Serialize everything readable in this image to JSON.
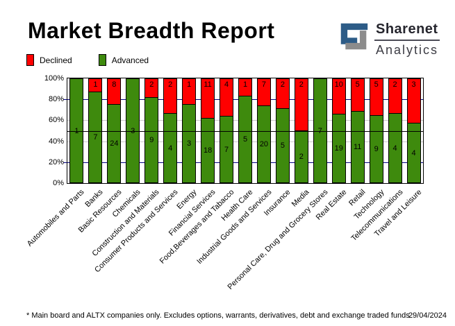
{
  "header": {
    "title": "Market Breadth Report",
    "brand_name": "Sharenet",
    "brand_sub": "Analytics"
  },
  "legend": [
    {
      "label": "Declined",
      "color": "#ff0000"
    },
    {
      "label": "Advanced",
      "color": "#3e8a0d"
    }
  ],
  "chart_data": {
    "type": "bar",
    "stacked": true,
    "unit": "percent_of_total",
    "title": "Market Breadth Report",
    "categories": [
      "Automobiles and Parts",
      "Banks",
      "Basic Resources",
      "Chemicals",
      "Construction and Materials",
      "Consumer Products and Services",
      "Energy",
      "Financial Services",
      "Food,Beverages and Tabacco",
      "Health Care",
      "Industrial Goods and Services",
      "Insurance",
      "Media",
      "Personal Care, Drug and Grocery Stores",
      "Real Estate",
      "Retail",
      "Technology",
      "Telecommunications",
      "Travel and Leisure"
    ],
    "series": [
      {
        "name": "Declined",
        "color": "#ff0000",
        "values": [
          0,
          1,
          8,
          0,
          2,
          2,
          1,
          11,
          4,
          1,
          7,
          2,
          2,
          0,
          10,
          5,
          5,
          2,
          3
        ]
      },
      {
        "name": "Advanced",
        "color": "#3e8a0d",
        "values": [
          1,
          7,
          24,
          3,
          9,
          4,
          3,
          18,
          7,
          5,
          20,
          5,
          2,
          7,
          19,
          11,
          9,
          4,
          4
        ]
      }
    ],
    "y_ticks": [
      "0%",
      "20%",
      "40%",
      "60%",
      "80%",
      "100%"
    ],
    "ylim": [
      0,
      100
    ],
    "gridlines": {
      "navy": [
        20,
        80
      ],
      "gray": [
        40,
        60
      ],
      "black": [
        50
      ]
    },
    "legend_position": "top-left"
  },
  "footer": {
    "note": "* Main board and ALTX companies only. Excludes options, warrants, derivatives, debt and exchange traded funds",
    "date": "29/04/2024"
  },
  "colors": {
    "declined": "#ff0000",
    "advanced": "#3e8a0d",
    "grid_navy": "#000080",
    "grid_gray": "#c8c8c8",
    "axis_black": "#000000",
    "logo_blue": "#2d5c87",
    "logo_gray": "#8c8c8c"
  }
}
